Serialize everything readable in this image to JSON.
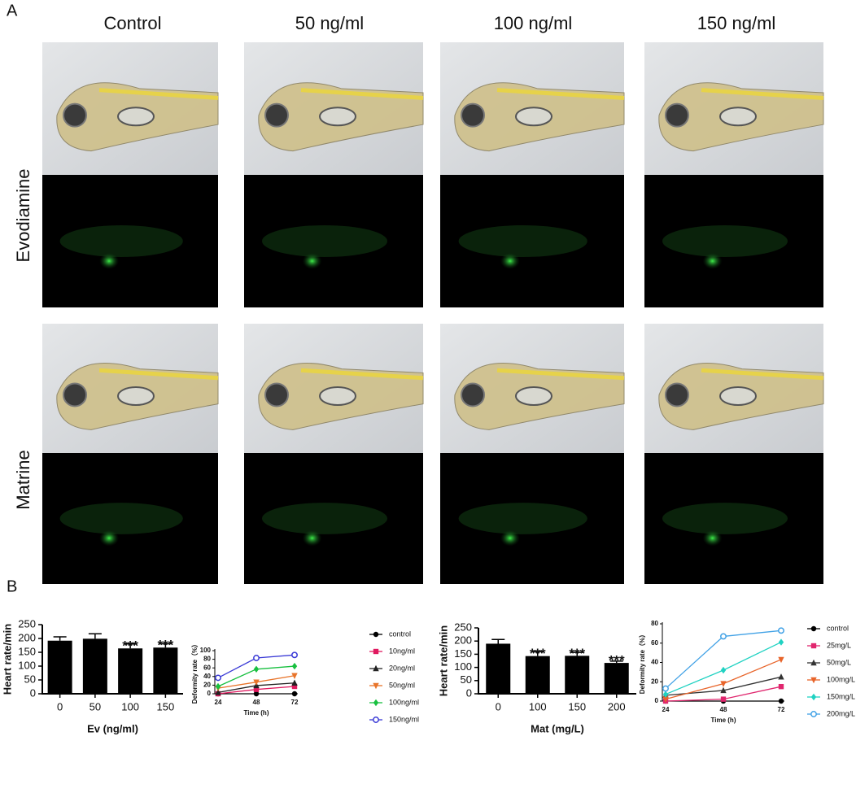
{
  "figure": {
    "panel_a_label": "A",
    "panel_b_label": "B",
    "columns": [
      "Control",
      "50 ng/ml",
      "100 ng/ml",
      "150 ng/ml"
    ],
    "rows": [
      "Evodiamine",
      "Matrine"
    ]
  },
  "chart_data": [
    {
      "type": "bar",
      "categories": [
        "0",
        "50",
        "100",
        "150"
      ],
      "values": [
        192,
        199,
        164,
        167
      ],
      "errors": [
        14,
        18,
        16,
        14
      ],
      "value_annotations": [
        null,
        null,
        "***",
        "***"
      ],
      "color": "#000000",
      "ylim": [
        0,
        250
      ],
      "yticks": [
        0,
        50,
        100,
        150,
        200,
        250
      ],
      "x_label": "Ev (ng/ml)",
      "y_label": "Heart rate/min"
    },
    {
      "type": "line",
      "x": [
        24,
        48,
        72
      ],
      "xlim": [
        24,
        72
      ],
      "xticks": [
        24,
        48,
        72
      ],
      "ylim": [
        0,
        100
      ],
      "yticks": [
        0,
        20,
        40,
        60,
        80,
        100
      ],
      "x_label": "Time (h)",
      "y_label": "Deformity rate（%）",
      "series": [
        {
          "name": "control",
          "color": "#000000",
          "marker": "circle",
          "values": [
            0,
            0,
            0
          ]
        },
        {
          "name": "10ng/ml",
          "color": "#e0195f",
          "marker": "square",
          "values": [
            0,
            10,
            17
          ]
        },
        {
          "name": "20ng/ml",
          "color": "#222222",
          "marker": "triangle",
          "values": [
            3,
            19,
            25
          ]
        },
        {
          "name": "50ng/ml",
          "color": "#e8742a",
          "marker": "down-triangle",
          "values": [
            13,
            27,
            42
          ]
        },
        {
          "name": "100ng/ml",
          "color": "#18c040",
          "marker": "diamond",
          "values": [
            17,
            57,
            64
          ]
        },
        {
          "name": "150ng/ml",
          "color": "#3a3ad6",
          "marker": "open-circle",
          "values": [
            37,
            83,
            90
          ]
        }
      ]
    },
    {
      "type": "bar",
      "categories": [
        "0",
        "100",
        "150",
        "200"
      ],
      "values": [
        190,
        143,
        144,
        117
      ],
      "errors": [
        16,
        17,
        13,
        7
      ],
      "value_annotations": [
        null,
        "***",
        "***",
        "***"
      ],
      "color": "#000000",
      "ylim": [
        0,
        250
      ],
      "yticks": [
        0,
        50,
        100,
        150,
        200,
        250
      ],
      "x_label": "Mat (mg/L)",
      "y_label": "Heart rate/min"
    },
    {
      "type": "line",
      "x": [
        24,
        48,
        72
      ],
      "xlim": [
        24,
        72
      ],
      "xticks": [
        24,
        48,
        72
      ],
      "ylim": [
        0,
        80
      ],
      "yticks": [
        0,
        20,
        40,
        60,
        80
      ],
      "x_label": "Time (h)",
      "y_label": "Deformity rate（%）",
      "series": [
        {
          "name": "control",
          "color": "#000000",
          "marker": "circle",
          "values": [
            0,
            0,
            0
          ]
        },
        {
          "name": "25mg/L",
          "color": "#e0266e",
          "marker": "square",
          "values": [
            0,
            2,
            15
          ]
        },
        {
          "name": "50mg/L",
          "color": "#333333",
          "marker": "triangle",
          "values": [
            6,
            11,
            25
          ]
        },
        {
          "name": "100mg/L",
          "color": "#e8642a",
          "marker": "down-triangle",
          "values": [
            2,
            18,
            43
          ]
        },
        {
          "name": "150mg/L",
          "color": "#20d2c2",
          "marker": "diamond",
          "values": [
            7,
            32,
            61
          ]
        },
        {
          "name": "200mg/L",
          "color": "#42a2e6",
          "marker": "open-circle",
          "values": [
            13,
            67,
            73
          ]
        }
      ]
    }
  ]
}
